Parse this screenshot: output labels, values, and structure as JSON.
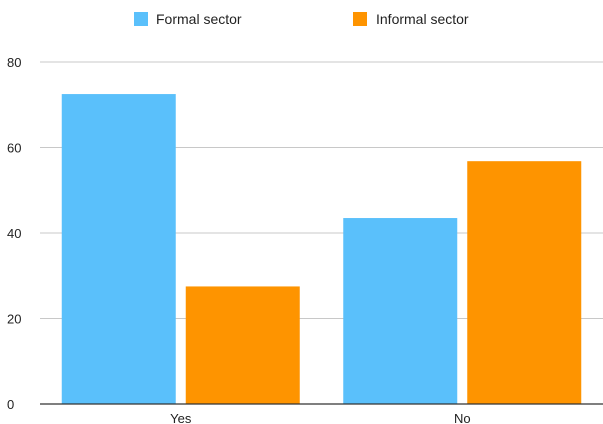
{
  "chart_data": {
    "type": "bar",
    "categories": [
      "Yes",
      "No"
    ],
    "series": [
      {
        "name": "Formal sector",
        "values": [
          72.5,
          43.5
        ],
        "color": "#5ac0fb"
      },
      {
        "name": "Informal sector",
        "values": [
          27.5,
          56.8
        ],
        "color": "#fe9400"
      }
    ],
    "title": "",
    "xlabel": "",
    "ylabel": "",
    "ylim": [
      0,
      80
    ],
    "yticks": [
      0,
      20,
      40,
      60,
      80
    ],
    "grid": true,
    "legend_position": "top-center"
  }
}
